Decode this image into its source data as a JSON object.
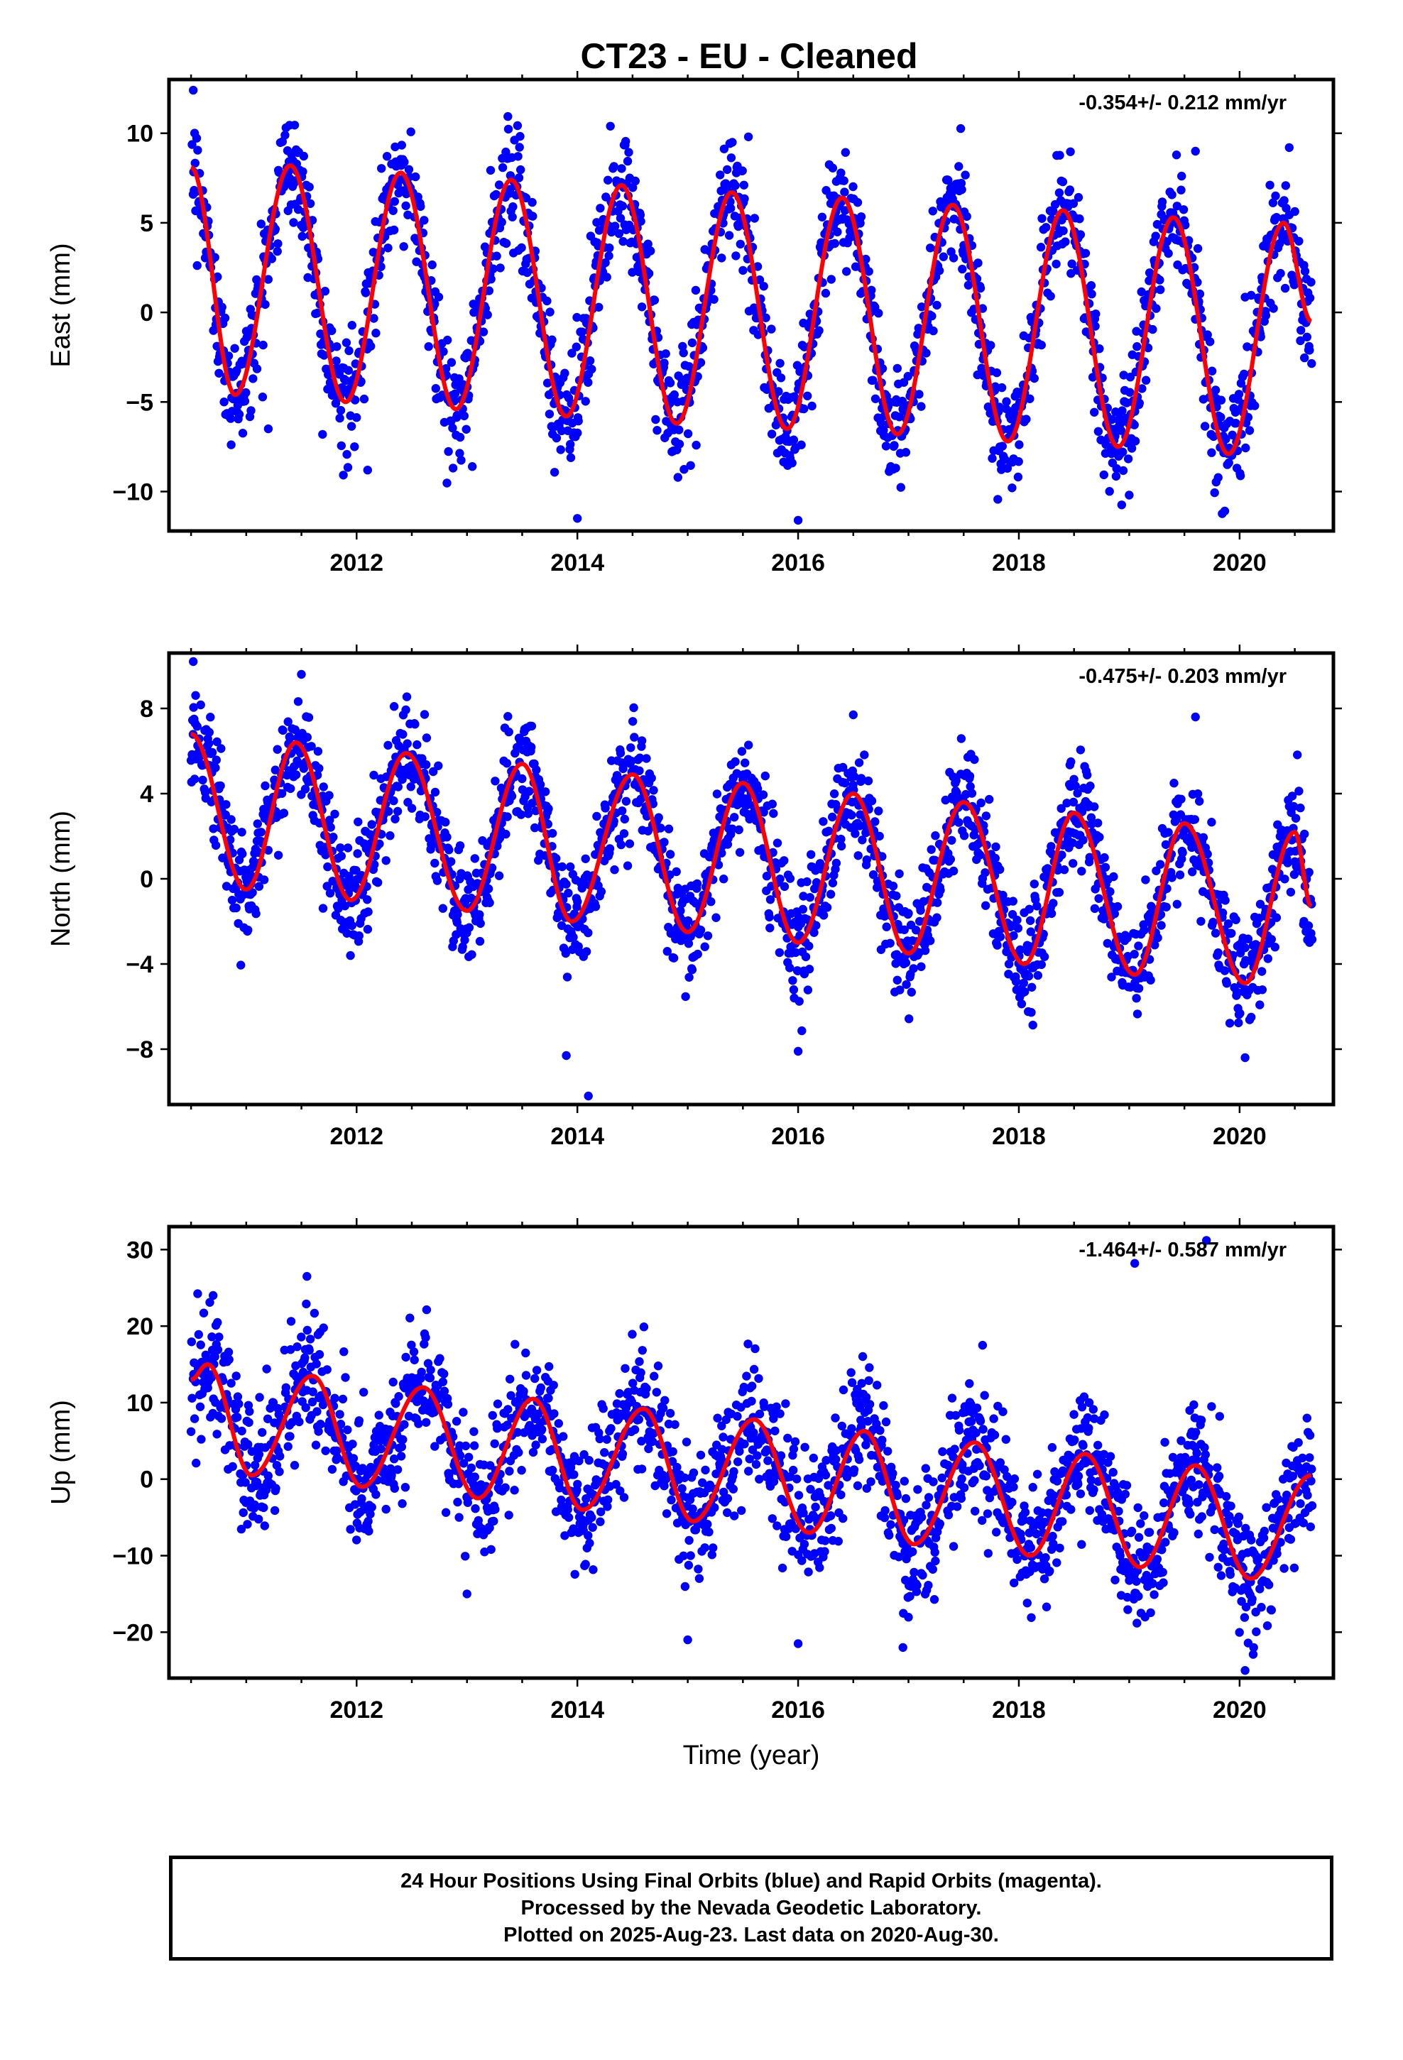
{
  "title": "CT23  - EU - Cleaned",
  "xlabel": "Time (year)",
  "footer": {
    "line1": "24 Hour Positions Using Final Orbits (blue) and Rapid Orbits (magenta).",
    "line2": "Processed by the Nevada Geodetic Laboratory.",
    "line3": "Plotted on 2025-Aug-23. Last data on 2020-Aug-30."
  },
  "colors": {
    "points": "#0000ff",
    "fit": "#ff0000",
    "frame": "#000000"
  },
  "chart_data": [
    {
      "type": "scatter",
      "ylabel": "East (mm)",
      "rate": "-0.354+/- 0.212 mm/yr",
      "xlim": [
        2010.3,
        2020.85
      ],
      "ylim": [
        -12.2,
        13
      ],
      "xticks": [
        2012,
        2014,
        2016,
        2018,
        2020
      ],
      "yticks": [
        10,
        5,
        0,
        -5,
        -10
      ],
      "ytick_labels": [
        "10",
        "5",
        "0",
        "−5",
        "−10"
      ],
      "series": [
        {
          "kind": "fit_line",
          "x": [
            2010.5,
            2010.9,
            2011.4,
            2011.9,
            2012.4,
            2012.9,
            2013.4,
            2013.9,
            2014.4,
            2014.9,
            2015.4,
            2015.9,
            2016.4,
            2016.9,
            2017.4,
            2017.9,
            2018.4,
            2018.9,
            2019.4,
            2019.9,
            2020.4,
            2020.65
          ],
          "y": [
            8.1,
            -4.6,
            8.2,
            -5.0,
            7.8,
            -5.4,
            7.4,
            -5.8,
            7.1,
            -6.2,
            6.7,
            -6.5,
            6.4,
            -6.8,
            6.0,
            -7.2,
            5.7,
            -7.5,
            5.3,
            -7.9,
            5.0,
            -0.5
          ]
        },
        {
          "kind": "daily_points",
          "x": [
            2010.5,
            2010.9,
            2011.4,
            2011.9,
            2012.4,
            2012.9,
            2013.4,
            2013.9,
            2014.4,
            2014.9,
            2015.4,
            2015.9,
            2016.4,
            2016.9,
            2017.4,
            2017.9,
            2018.4,
            2018.9,
            2019.4,
            2019.9,
            2020.4,
            2020.65
          ],
          "y": [
            8.1,
            -4.6,
            8.2,
            -5.0,
            7.8,
            -5.4,
            7.4,
            -5.8,
            7.1,
            -6.2,
            6.7,
            -6.5,
            6.4,
            -6.8,
            6.0,
            -7.2,
            5.7,
            -7.5,
            5.3,
            -7.9,
            5.0,
            -0.5
          ],
          "spread": 1.6,
          "outliers": [
            [
              2010.52,
              12.4
            ],
            [
              2011.2,
              -6.5
            ],
            [
              2012.1,
              -8.8
            ],
            [
              2014.0,
              -11.5
            ],
            [
              2015.55,
              9.8
            ],
            [
              2016.0,
              -11.6
            ],
            [
              2019.0,
              -10.2
            ],
            [
              2019.6,
              9.0
            ],
            [
              2020.45,
              9.2
            ]
          ]
        }
      ]
    },
    {
      "type": "scatter",
      "ylabel": "North (mm)",
      "rate": "-0.475+/- 0.203 mm/yr",
      "xlim": [
        2010.3,
        2020.85
      ],
      "ylim": [
        -10.6,
        10.6
      ],
      "xticks": [
        2012,
        2014,
        2016,
        2018,
        2020
      ],
      "yticks": [
        8,
        4,
        0,
        -4,
        -8
      ],
      "ytick_labels": [
        "8",
        "4",
        "0",
        "−4",
        "−8"
      ],
      "series": [
        {
          "kind": "fit_line",
          "x": [
            2010.5,
            2011.0,
            2011.45,
            2011.95,
            2012.45,
            2013.0,
            2013.5,
            2013.95,
            2014.5,
            2015.0,
            2015.5,
            2016.0,
            2016.5,
            2017.0,
            2017.5,
            2018.05,
            2018.5,
            2019.05,
            2019.5,
            2020.05,
            2020.5,
            2020.65
          ],
          "y": [
            6.8,
            -0.5,
            6.4,
            -1.0,
            5.9,
            -1.5,
            5.4,
            -2.0,
            4.9,
            -2.5,
            4.5,
            -3.0,
            4.0,
            -3.5,
            3.6,
            -4.0,
            3.1,
            -4.5,
            2.6,
            -4.9,
            2.2,
            -1.3
          ]
        },
        {
          "kind": "daily_points",
          "x": [
            2010.5,
            2011.0,
            2011.45,
            2011.95,
            2012.45,
            2013.0,
            2013.5,
            2013.95,
            2014.5,
            2015.0,
            2015.5,
            2016.0,
            2016.5,
            2017.0,
            2017.5,
            2018.05,
            2018.5,
            2019.05,
            2019.5,
            2020.05,
            2020.5,
            2020.65
          ],
          "y": [
            6.8,
            -0.5,
            6.4,
            -1.0,
            5.9,
            -1.5,
            5.4,
            -2.0,
            4.9,
            -2.5,
            4.5,
            -3.0,
            4.0,
            -3.5,
            3.6,
            -4.0,
            3.1,
            -4.5,
            2.6,
            -4.9,
            2.2,
            -1.3
          ],
          "spread": 1.3,
          "outliers": [
            [
              2010.52,
              10.2
            ],
            [
              2011.5,
              9.6
            ],
            [
              2013.9,
              -8.3
            ],
            [
              2014.1,
              -10.2
            ],
            [
              2016.0,
              -8.1
            ],
            [
              2016.5,
              7.7
            ],
            [
              2019.6,
              7.6
            ],
            [
              2020.05,
              -8.4
            ]
          ]
        }
      ]
    },
    {
      "type": "scatter",
      "ylabel": "Up (mm)",
      "rate": "-1.464+/- 0.587 mm/yr",
      "xlim": [
        2010.3,
        2020.85
      ],
      "ylim": [
        -26,
        33
      ],
      "xticks": [
        2012,
        2014,
        2016,
        2018,
        2020
      ],
      "yticks": [
        30,
        20,
        10,
        0,
        -10,
        -20
      ],
      "ytick_labels": [
        "30",
        "20",
        "10",
        "0",
        "−10",
        "−20"
      ],
      "series": [
        {
          "kind": "fit_line",
          "x": [
            2010.5,
            2010.65,
            2011.05,
            2011.6,
            2012.05,
            2012.6,
            2013.1,
            2013.6,
            2014.05,
            2014.6,
            2015.05,
            2015.6,
            2016.1,
            2016.6,
            2017.05,
            2017.6,
            2018.1,
            2018.6,
            2019.1,
            2019.6,
            2020.1,
            2020.65
          ],
          "y": [
            13,
            15,
            0.5,
            13.5,
            -1,
            12,
            -2.5,
            10.5,
            -4,
            9.2,
            -5.5,
            7.8,
            -7,
            6.3,
            -8.5,
            4.8,
            -10,
            3.3,
            -11.5,
            1.8,
            -13,
            0.5
          ]
        },
        {
          "kind": "daily_points",
          "x": [
            2010.5,
            2010.65,
            2011.05,
            2011.6,
            2012.05,
            2012.6,
            2013.1,
            2013.6,
            2014.05,
            2014.6,
            2015.05,
            2015.6,
            2016.1,
            2016.6,
            2017.05,
            2017.6,
            2018.1,
            2018.6,
            2019.1,
            2019.6,
            2020.1,
            2020.65
          ],
          "y": [
            13,
            15,
            0.5,
            13.5,
            -1,
            12,
            -2.5,
            10.5,
            -4,
            9.2,
            -5.5,
            7.8,
            -7,
            6.3,
            -8.5,
            4.8,
            -10,
            3.3,
            -11.5,
            1.8,
            -13,
            0.5
          ],
          "spread": 4.2,
          "outliers": [
            [
              2010.7,
              24
            ],
            [
              2011.55,
              26.5
            ],
            [
              2013.0,
              -15
            ],
            [
              2015.0,
              -21
            ],
            [
              2016.0,
              -21.5
            ],
            [
              2016.95,
              -22
            ],
            [
              2019.05,
              28.2
            ],
            [
              2019.7,
              31.2
            ],
            [
              2020.05,
              -25
            ]
          ]
        }
      ]
    }
  ]
}
